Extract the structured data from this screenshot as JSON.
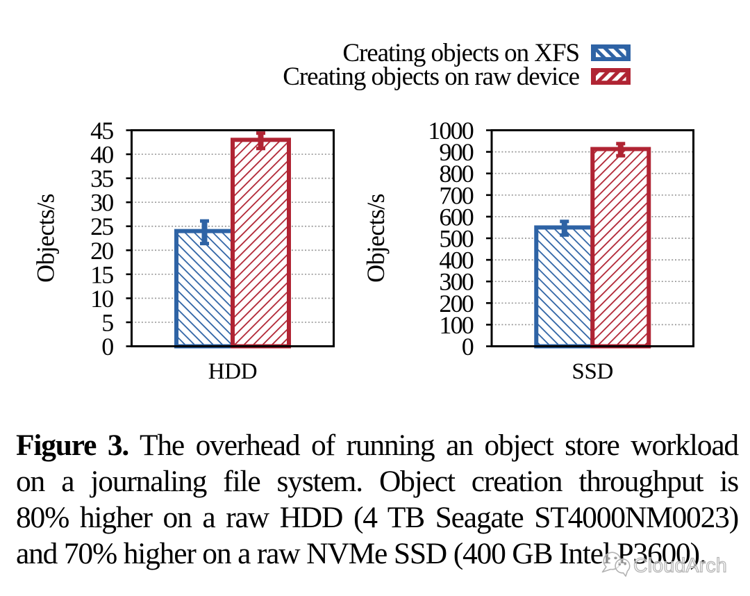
{
  "legend": {
    "items": [
      {
        "label": "Creating objects on XFS",
        "series": "xfs",
        "color": "#2e63a5",
        "hatch": "backslash"
      },
      {
        "label": "Creating objects on raw device",
        "series": "raw",
        "color": "#b02433",
        "hatch": "slash"
      }
    ]
  },
  "chart_data": [
    {
      "type": "bar",
      "title": "",
      "xlabel": "HDD",
      "ylabel": "Objects/s",
      "categories": [
        "HDD"
      ],
      "ylim": [
        0,
        45
      ],
      "ytick_step": 5,
      "yticks": [
        0,
        5,
        10,
        15,
        20,
        25,
        30,
        35,
        40,
        45
      ],
      "grid": "dotted horizontal",
      "legend_position": "top right, outside",
      "series": [
        {
          "name": "Creating objects on XFS",
          "color": "#2e63a5",
          "hatch": "backslash",
          "values": [
            24
          ],
          "err_lo": [
            21.4
          ],
          "err_hi": [
            26.1
          ]
        },
        {
          "name": "Creating objects on raw device",
          "color": "#b02433",
          "hatch": "slash",
          "values": [
            43
          ],
          "err_lo": [
            41.2
          ],
          "err_hi": [
            44.4
          ]
        }
      ]
    },
    {
      "type": "bar",
      "title": "",
      "xlabel": "SSD",
      "ylabel": "Objects/s",
      "categories": [
        "SSD"
      ],
      "ylim": [
        0,
        1000
      ],
      "ytick_step": 100,
      "yticks": [
        0,
        100,
        200,
        300,
        400,
        500,
        600,
        700,
        800,
        900,
        1000
      ],
      "grid": "dotted horizontal",
      "legend_position": "top right, outside",
      "series": [
        {
          "name": "Creating objects on XFS",
          "color": "#2e63a5",
          "hatch": "backslash",
          "values": [
            550
          ],
          "err_lo": [
            515
          ],
          "err_hi": [
            578
          ]
        },
        {
          "name": "Creating objects on raw device",
          "color": "#b02433",
          "hatch": "slash",
          "values": [
            913
          ],
          "err_lo": [
            882
          ],
          "err_hi": [
            938
          ]
        }
      ]
    }
  ],
  "caption": {
    "label": "Figure 3.",
    "lines": [
      "The overhead of running an object store workload",
      "on a journaling file system. Object creation throughput is",
      "80% higher on a raw HDD (4 TB Seagate ST4000NM0023)",
      "and 70% higher on a raw NVMe SSD (400 GB Intel P3600)."
    ]
  },
  "watermark": {
    "text": "CloudArch",
    "icon": "wechat-logo",
    "color": "#b3b3b3"
  }
}
